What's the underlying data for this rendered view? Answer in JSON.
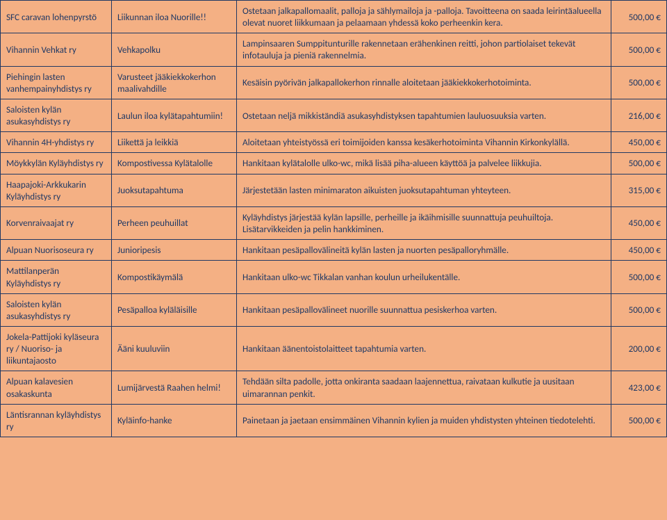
{
  "rows": [
    {
      "org": "SFC caravan lohenpyrstö",
      "project": "Liikunnan iloa Nuorille!!",
      "desc": "Ostetaan jalkapallomaalit, palloja ja sählymailoja ja -palloja. Tavoitteena on saada leirintäalueella olevat nuoret liikkumaan ja pelaamaan yhdessä koko perheenkin kera.",
      "amount": "500,00 €"
    },
    {
      "org": "Vihannin Vehkat ry",
      "project": "Vehkapolku",
      "desc": "Lampinsaaren Sumppitunturille rakennetaan erähenkinen reitti, johon partiolaiset tekevät infotauluja ja pieniä rakennelmia.",
      "amount": "500,00 €"
    },
    {
      "org": "Piehingin lasten vanhempainyhdistys ry",
      "project": "Varusteet jääkiekkokerhon maalivahdille",
      "desc": "Kesäisin pyörivän jalkapallokerhon rinnalle aloitetaan jääkiekkokerhotoiminta.",
      "amount": "500,00 €"
    },
    {
      "org": "Saloisten kylän asukasyhdistys ry",
      "project": "Laulun iloa kylätapahtumiin!",
      "desc": "Ostetaan neljä mikkiständiä asukasyhdistyksen tapahtumien lauluosuuksia varten.",
      "amount": "216,00 €"
    },
    {
      "org": "Vihannin 4H-yhdistys ry",
      "project": "Liikettä ja leikkiä",
      "desc": "Aloitetaan yhteistyössä eri toimijoiden kanssa kesäkerhotoiminta Vihannin Kirkonkylällä.",
      "amount": "450,00 €"
    },
    {
      "org": "Möykkylän Kyläyhdistys ry",
      "project": "Kompostivessa Kylätalolle",
      "desc": "Hankitaan kylätalolle ulko-wc, mikä lisää piha-alueen käyttöä ja palvelee liikkujia.",
      "amount": "500,00 €"
    },
    {
      "org": "Haapajoki-Arkkukarin Kyläyhdistys ry",
      "project": "Juoksutapahtuma",
      "desc": "Järjestetään lasten minimaraton aikuisten juoksutapahtuman yhteyteen.",
      "amount": "315,00 €"
    },
    {
      "org": "Korvenraivaajat ry",
      "project": "Perheen peuhuillat",
      "desc": "Kyläyhdistys järjestää kylän lapsille, perheille ja ikäihmisille suunnattuja peuhuiltoja. Lisätarvikkeiden ja pelin hankkiminen.",
      "amount": "450,00 €"
    },
    {
      "org": "Alpuan Nuorisoseura ry",
      "project": "Junioripesis",
      "desc": "Hankitaan pesäpallovälineitä kylän lasten ja nuorten pesäpalloryhmälle.",
      "amount": "450,00 €"
    },
    {
      "org": "Mattilanperän Kyläyhdistys ry",
      "project": "Kompostikäymälä",
      "desc": "Hankitaan ulko-wc Tikkalan vanhan koulun urheilukentälle.",
      "amount": "500,00 €"
    },
    {
      "org": "Saloisten kylän asukasyhdistys ry",
      "project": "Pesäpalloa kyläläisille",
      "desc": "Hankitaan pesäpallovälineet nuorille suunnattua pesiskerhoa varten.",
      "amount": "500,00 €"
    },
    {
      "org": "Jokela-Pattijoki kyläseura ry / Nuoriso- ja liikuntajaosto",
      "project": "Ääni kuuluviin",
      "desc": "Hankitaan äänentoistolaitteet tapahtumia varten.",
      "amount": "200,00 €"
    },
    {
      "org": "Alpuan kalavesien osakaskunta",
      "project": "Lumijärvestä Raahen helmi!",
      "desc": "Tehdään silta padolle, jotta onkiranta saadaan laajennettua, raivataan kulkutie ja uusitaan uimarannan penkit.",
      "amount": "423,00 €"
    },
    {
      "org": "Läntisrannan kyläyhdistys ry",
      "project": "Kyläinfo-hanke",
      "desc": "Painetaan ja jaetaan ensimmäinen Vihannin kylien ja muiden yhdistysten yhteinen tiedotelehti.",
      "amount": "500,00 €"
    }
  ]
}
